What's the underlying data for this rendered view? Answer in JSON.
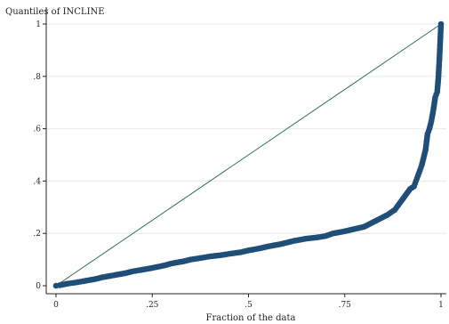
{
  "chart_data": {
    "type": "scatter",
    "title": "",
    "xlabel": "Fraction of the data",
    "ylabel": "Quantiles of INCLINE",
    "xlim": [
      0,
      1
    ],
    "ylim": [
      0,
      1
    ],
    "x_ticks": [
      {
        "value": 0,
        "label": "0"
      },
      {
        "value": 0.25,
        "label": ".25"
      },
      {
        "value": 0.5,
        "label": ".5"
      },
      {
        "value": 0.75,
        "label": ".75"
      },
      {
        "value": 1,
        "label": "1"
      }
    ],
    "y_ticks": [
      {
        "value": 0,
        "label": "0"
      },
      {
        "value": 0.2,
        "label": ".2"
      },
      {
        "value": 0.4,
        "label": ".4"
      },
      {
        "value": 0.6,
        "label": ".6"
      },
      {
        "value": 0.8,
        "label": ".8"
      },
      {
        "value": 1,
        "label": "1"
      }
    ],
    "grid": "horizontal",
    "reference_line": {
      "from": [
        0,
        0
      ],
      "to": [
        1,
        1
      ],
      "color": "#2e6f5e"
    },
    "point_color": "#1f4e79",
    "series": [
      {
        "x": [
          0,
          0.01,
          0.02,
          0.03,
          0.05,
          0.07,
          0.1,
          0.12,
          0.15,
          0.18,
          0.2,
          0.22,
          0.25,
          0.28,
          0.3,
          0.33,
          0.35,
          0.38,
          0.4,
          0.43,
          0.45,
          0.48,
          0.5,
          0.53,
          0.55,
          0.58,
          0.6,
          0.62,
          0.65,
          0.68,
          0.7,
          0.72,
          0.75,
          0.77,
          0.8,
          0.82,
          0.84,
          0.86,
          0.88,
          0.89,
          0.9,
          0.91,
          0.92,
          0.93,
          0.935,
          0.94,
          0.945,
          0.95,
          0.955,
          0.96,
          0.965,
          0.97,
          0.975,
          0.98,
          0.985,
          0.99,
          0.993,
          0.996,
          1.0
        ],
        "y": [
          0.0,
          0.002,
          0.005,
          0.008,
          0.012,
          0.017,
          0.025,
          0.032,
          0.04,
          0.048,
          0.055,
          0.06,
          0.068,
          0.077,
          0.085,
          0.093,
          0.1,
          0.107,
          0.112,
          0.117,
          0.122,
          0.128,
          0.135,
          0.143,
          0.15,
          0.158,
          0.165,
          0.172,
          0.18,
          0.185,
          0.19,
          0.2,
          0.208,
          0.215,
          0.225,
          0.24,
          0.255,
          0.27,
          0.29,
          0.31,
          0.33,
          0.35,
          0.37,
          0.38,
          0.4,
          0.42,
          0.44,
          0.46,
          0.49,
          0.52,
          0.58,
          0.6,
          0.63,
          0.67,
          0.72,
          0.74,
          0.79,
          0.87,
          1.0
        ]
      }
    ]
  }
}
